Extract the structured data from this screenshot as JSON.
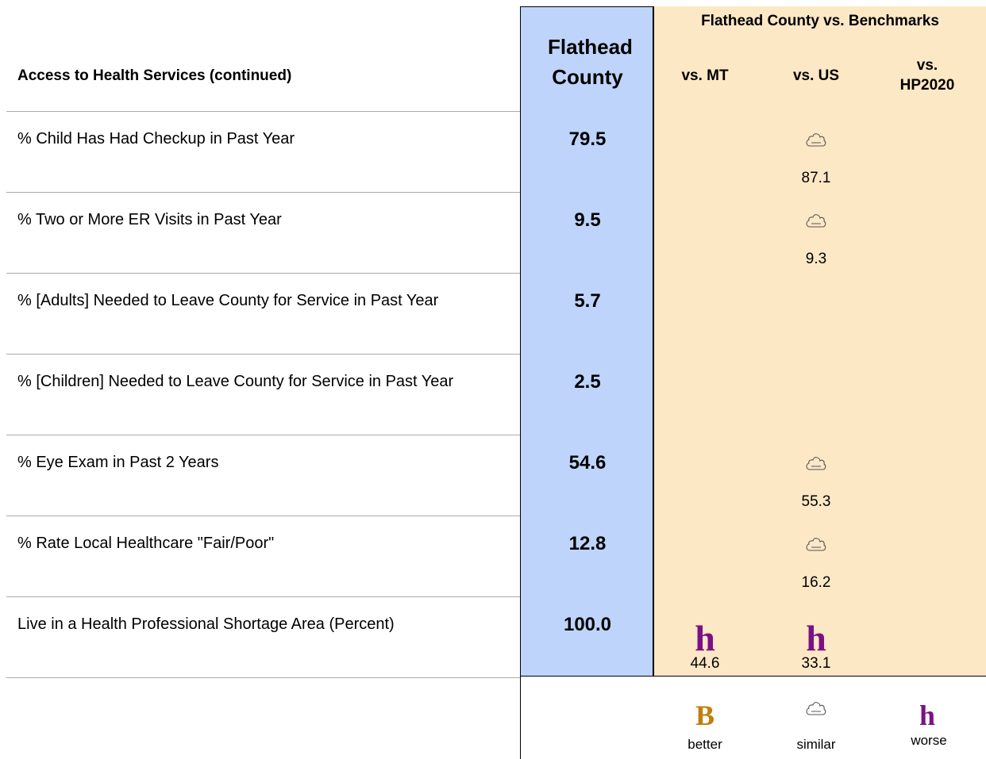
{
  "header": {
    "title": "Access to Health Services (continued)",
    "county": "Flathead County",
    "group": "Flathead County vs. Benchmarks",
    "columns": [
      "vs. MT",
      "vs. US",
      "vs. HP2020"
    ]
  },
  "rows": [
    {
      "label": "% Child Has Had Checkup in Past Year",
      "county": "79.5",
      "us": {
        "value": "87.1"
      }
    },
    {
      "label": "% Two or More ER Visits in Past Year",
      "county": "9.5",
      "us": {
        "value": "9.3"
      }
    },
    {
      "label": "% [Adults] Needed to Leave County for Service in Past Year",
      "county": "5.7"
    },
    {
      "label": "% [Children] Needed to Leave County for Service in Past Year",
      "county": "2.5"
    },
    {
      "label": "% Eye Exam in Past 2 Years",
      "county": "54.6",
      "us": {
        "value": "55.3"
      }
    },
    {
      "label": "% Rate Local Healthcare \"Fair/Poor\"",
      "county": "12.8",
      "us": {
        "value": "16.2"
      }
    },
    {
      "label": "Live in a Health Professional Shortage Area (Percent)",
      "county": "100.0",
      "mt": {
        "icon": "h",
        "value": "44.6"
      },
      "us": {
        "icon": "h",
        "value": "33.1"
      }
    }
  ],
  "legend": {
    "better": {
      "icon": "B",
      "label": "better"
    },
    "similar": {
      "label": "similar"
    },
    "worse": {
      "icon": "h",
      "label": "worse"
    }
  }
}
